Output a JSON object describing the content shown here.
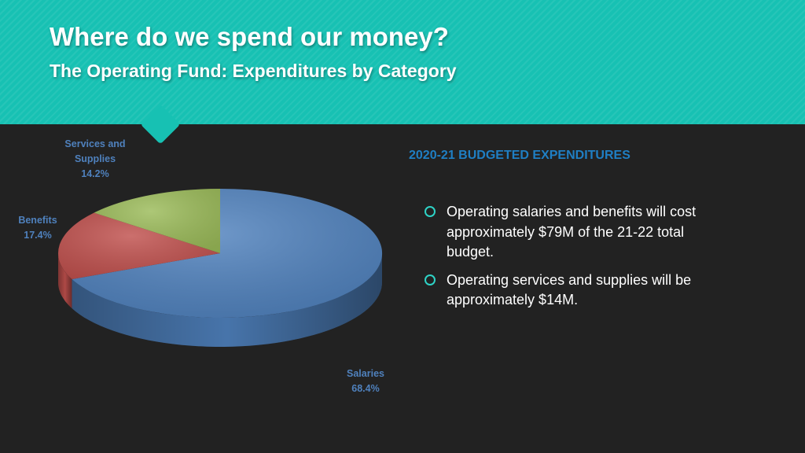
{
  "header": {
    "title": "Where do we spend our money?",
    "subtitle": "The Operating Fund: Expenditures by Category"
  },
  "colors": {
    "header_bg": "#17c1b3",
    "slide_bg": "#222222",
    "salaries": "#4f81bd",
    "benefits": "#c0504d",
    "services_supplies": "#9bbb59",
    "label_text": "#4f81bd",
    "side_heading": "#1f7fc4",
    "bullet_icon": "#2ed3c6"
  },
  "chart_data": {
    "type": "pie",
    "style": "3d",
    "categories": [
      "Salaries",
      "Benefits",
      "Services and Supplies"
    ],
    "values": [
      68.4,
      17.4,
      14.2
    ],
    "value_labels": [
      "68.4%",
      "17.4%",
      "14.2%"
    ],
    "start_angle_deg": 90,
    "direction": "clockwise",
    "title": "",
    "legend": "none",
    "data_labels": "outside"
  },
  "labels": {
    "services": {
      "line1": "Services and",
      "line2": "Supplies",
      "pct": "14.2%"
    },
    "benefits": {
      "name": "Benefits",
      "pct": "17.4%"
    },
    "salaries": {
      "name": "Salaries",
      "pct": "68.4%"
    }
  },
  "side": {
    "heading": "2020-21 BUDGETED EXPENDITURES",
    "bullets": [
      "Operating salaries and benefits will cost approximately $79M of the 21-22 total budget.",
      "Operating services and supplies will be approximately $14M."
    ]
  }
}
